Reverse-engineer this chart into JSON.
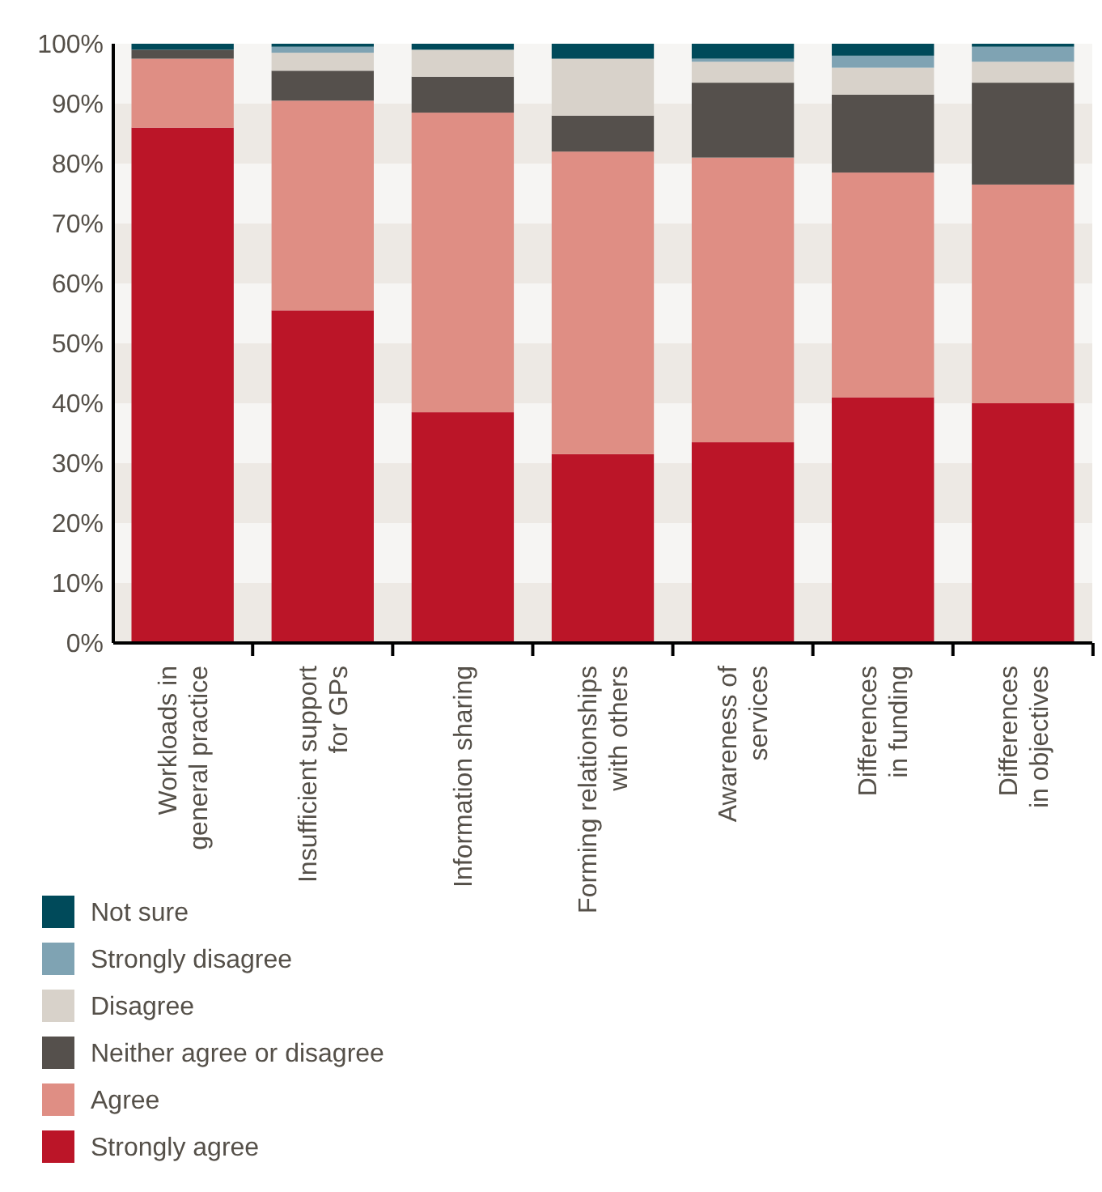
{
  "chart_data": {
    "type": "bar",
    "stacked": true,
    "categories": [
      "Workloads in\ngeneral practice",
      "Insufficient support\nfor GPs",
      "Information sharing",
      "Forming relationships\nwith others",
      "Awareness of\nservices",
      "Differences\nin funding",
      "Differences\nin objectives"
    ],
    "series": [
      {
        "name": "Strongly agree",
        "color": "#bb1528",
        "values": [
          86,
          55.5,
          38.5,
          31.5,
          33.5,
          41,
          40
        ]
      },
      {
        "name": "Agree",
        "color": "#df8e84",
        "values": [
          11.5,
          35,
          50,
          50.5,
          47.5,
          37.5,
          36.5
        ]
      },
      {
        "name": "Neither agree or disagree",
        "color": "#55504c",
        "values": [
          1.5,
          5,
          6,
          6,
          12.5,
          13,
          17
        ]
      },
      {
        "name": "Disagree",
        "color": "#d8d2ca",
        "values": [
          0,
          3,
          4.5,
          9.5,
          3.5,
          4.5,
          3.5
        ]
      },
      {
        "name": "Strongly disagree",
        "color": "#7fa3b3",
        "values": [
          0,
          1,
          0,
          0,
          0.5,
          2,
          2.5
        ]
      },
      {
        "name": "Not sure",
        "color": "#004a5a",
        "values": [
          1,
          0.5,
          1,
          2.5,
          2.5,
          2,
          0.5
        ]
      }
    ],
    "ylim": [
      0,
      100
    ],
    "yticks": [
      {
        "value": 0,
        "label": "0%"
      },
      {
        "value": 10,
        "label": "10%"
      },
      {
        "value": 20,
        "label": "20%"
      },
      {
        "value": 30,
        "label": "30%"
      },
      {
        "value": 40,
        "label": "40%"
      },
      {
        "value": 50,
        "label": "50%"
      },
      {
        "value": 60,
        "label": "60%"
      },
      {
        "value": 70,
        "label": "70%"
      },
      {
        "value": 80,
        "label": "80%"
      },
      {
        "value": 90,
        "label": "90%"
      },
      {
        "value": 100,
        "label": "100%"
      }
    ],
    "legend": "bottom"
  }
}
